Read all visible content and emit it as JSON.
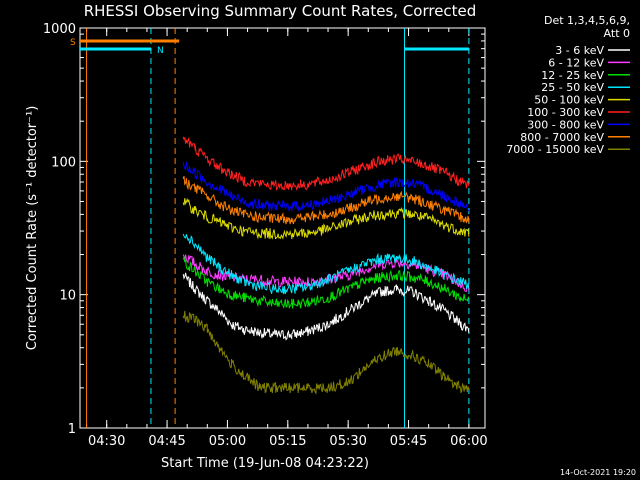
{
  "chart_data": {
    "type": "line",
    "title": "RHESSI Observing Summary Count Rates, Corrected",
    "xlabel": "Start Time (19-Jun-08 04:23:22)",
    "ylabel": "Corrected Count Rate (s⁻¹ detector⁻¹)",
    "yscale": "log",
    "ylim": [
      1,
      1000
    ],
    "xlim": [
      "04:23:22",
      "06:04:00"
    ],
    "y_ticks": [
      "1",
      "10",
      "100",
      "1000"
    ],
    "x_ticks": [
      "04:30",
      "04:45",
      "05:00",
      "05:15",
      "05:30",
      "05:45",
      "06:00"
    ],
    "legend_header": [
      "Det 1,3,4,5,6,9,",
      "Att 0"
    ],
    "legend_position": "right",
    "timestamp": "14-Oct-2021 19:20",
    "data_start": "04:49",
    "data_end": "06:00",
    "series": [
      {
        "name": "3 - 6 keV",
        "color": "#ffffff",
        "x": [
          "04:49",
          "04:52",
          "04:55",
          "04:58",
          "05:01",
          "05:04",
          "05:08",
          "05:12",
          "05:16",
          "05:20",
          "05:25",
          "05:30",
          "05:34",
          "05:38",
          "05:42",
          "05:46",
          "05:50",
          "05:54",
          "05:58",
          "06:00"
        ],
        "y": [
          14,
          11,
          9,
          7.5,
          6,
          5.5,
          5.2,
          5,
          5,
          5.3,
          6,
          7.5,
          9,
          10.5,
          11,
          10.5,
          9,
          7.5,
          6,
          5.5
        ]
      },
      {
        "name": "6 - 12 keV",
        "color": "#ff3cff",
        "x": [
          "04:49",
          "04:52",
          "04:55",
          "04:58",
          "05:01",
          "05:04",
          "05:08",
          "05:12",
          "05:16",
          "05:20",
          "05:25",
          "05:30",
          "05:34",
          "05:38",
          "05:42",
          "05:46",
          "05:50",
          "05:54",
          "05:58",
          "06:00"
        ],
        "y": [
          20,
          17,
          15,
          14,
          13.5,
          13,
          13,
          12.5,
          12.5,
          12.5,
          13,
          14,
          15.5,
          17,
          17.5,
          17,
          15.5,
          14,
          12,
          11
        ]
      },
      {
        "name": "12 - 25 keV",
        "color": "#00e000",
        "x": [
          "04:49",
          "04:52",
          "04:55",
          "04:58",
          "05:01",
          "05:04",
          "05:08",
          "05:12",
          "05:16",
          "05:20",
          "05:25",
          "05:30",
          "05:34",
          "05:38",
          "05:42",
          "05:46",
          "05:50",
          "05:54",
          "05:58",
          "06:00"
        ],
        "y": [
          18,
          15,
          12.5,
          11,
          10,
          9.5,
          9,
          8.5,
          8.5,
          8.7,
          9.5,
          11,
          12.5,
          13.5,
          14,
          13.5,
          12.5,
          11,
          9.5,
          9
        ]
      },
      {
        "name": "25 - 50 keV",
        "color": "#00e8ff",
        "x": [
          "04:49",
          "04:52",
          "04:55",
          "04:58",
          "05:01",
          "05:04",
          "05:08",
          "05:12",
          "05:16",
          "05:20",
          "05:25",
          "05:30",
          "05:34",
          "05:38",
          "05:42",
          "05:46",
          "05:50",
          "05:54",
          "05:58",
          "06:00"
        ],
        "y": [
          30,
          24,
          19,
          16,
          14,
          12.5,
          11.5,
          11,
          11,
          11.5,
          13,
          15,
          17,
          18.5,
          19,
          18,
          16,
          14,
          12.5,
          12
        ]
      },
      {
        "name": "50 - 100 keV",
        "color": "#dcdc00",
        "x": [
          "04:49",
          "04:52",
          "04:55",
          "04:58",
          "05:01",
          "05:04",
          "05:08",
          "05:12",
          "05:16",
          "05:20",
          "05:25",
          "05:30",
          "05:34",
          "05:38",
          "05:42",
          "05:46",
          "05:50",
          "05:54",
          "05:58",
          "06:00"
        ],
        "y": [
          50,
          43,
          38,
          35,
          32,
          30,
          29,
          28.5,
          28.5,
          29,
          31,
          35,
          38,
          40,
          41,
          40,
          37,
          33,
          30,
          29
        ]
      },
      {
        "name": "100 - 300 keV",
        "color": "#ff2020",
        "x": [
          "04:49",
          "04:52",
          "04:55",
          "04:58",
          "05:01",
          "05:04",
          "05:08",
          "05:12",
          "05:16",
          "05:20",
          "05:25",
          "05:30",
          "05:34",
          "05:38",
          "05:42",
          "05:46",
          "05:50",
          "05:54",
          "05:58",
          "06:00"
        ],
        "y": [
          150,
          125,
          105,
          90,
          80,
          72,
          68,
          66,
          66,
          67,
          72,
          82,
          92,
          100,
          104,
          100,
          92,
          82,
          70,
          66
        ]
      },
      {
        "name": "300 - 800 keV",
        "color": "#0000ff",
        "x": [
          "04:49",
          "04:52",
          "04:55",
          "04:58",
          "05:01",
          "05:04",
          "05:08",
          "05:12",
          "05:16",
          "05:20",
          "05:25",
          "05:30",
          "05:34",
          "05:38",
          "05:42",
          "05:46",
          "05:50",
          "05:54",
          "05:58",
          "06:00"
        ],
        "y": [
          95,
          82,
          70,
          62,
          55,
          50,
          47,
          46,
          46,
          47,
          50,
          56,
          62,
          67,
          70,
          68,
          62,
          55,
          48,
          45
        ]
      },
      {
        "name": "800 - 7000 keV",
        "color": "#ff8000",
        "x": [
          "04:49",
          "04:52",
          "04:55",
          "04:58",
          "05:01",
          "05:04",
          "05:08",
          "05:12",
          "05:16",
          "05:20",
          "05:25",
          "05:30",
          "05:34",
          "05:38",
          "05:42",
          "05:46",
          "05:50",
          "05:54",
          "05:58",
          "06:00"
        ],
        "y": [
          72,
          63,
          55,
          48,
          43,
          40,
          38,
          37,
          37,
          38,
          40,
          44,
          49,
          53,
          55,
          53,
          48,
          43,
          38,
          36
        ]
      },
      {
        "name": "7000 - 15000 keV",
        "color": "#808000",
        "x": [
          "04:49",
          "04:52",
          "04:55",
          "04:58",
          "05:01",
          "05:04",
          "05:08",
          "05:12",
          "05:16",
          "05:20",
          "05:25",
          "05:30",
          "05:34",
          "05:38",
          "05:42",
          "05:46",
          "05:50",
          "05:54",
          "05:58",
          "06:00"
        ],
        "y": [
          7,
          6.5,
          5.5,
          4,
          3,
          2.5,
          2,
          2,
          2,
          2,
          2,
          2.2,
          2.8,
          3.4,
          3.8,
          3.5,
          3,
          2.4,
          2,
          2
        ]
      }
    ],
    "flags": [
      {
        "label": "S",
        "color": "#ff8000",
        "start": "04:23:22",
        "end": "04:48"
      },
      {
        "label": "N",
        "color": "#00e8ff",
        "start": "04:23:22",
        "end": "04:41"
      },
      {
        "label": "",
        "color": "#00e8ff",
        "start": "05:44",
        "end": "06:00"
      }
    ],
    "markers": [
      {
        "time": "04:25",
        "color": "#ff8000",
        "style": "solid"
      },
      {
        "time": "04:41",
        "color": "#00e8ff",
        "style": "dashed"
      },
      {
        "time": "04:47",
        "color": "#ff8000",
        "style": "dashed"
      },
      {
        "time": "05:44",
        "color": "#00e8ff",
        "style": "solid"
      },
      {
        "time": "06:00",
        "color": "#00e8ff",
        "style": "dashed"
      }
    ]
  }
}
